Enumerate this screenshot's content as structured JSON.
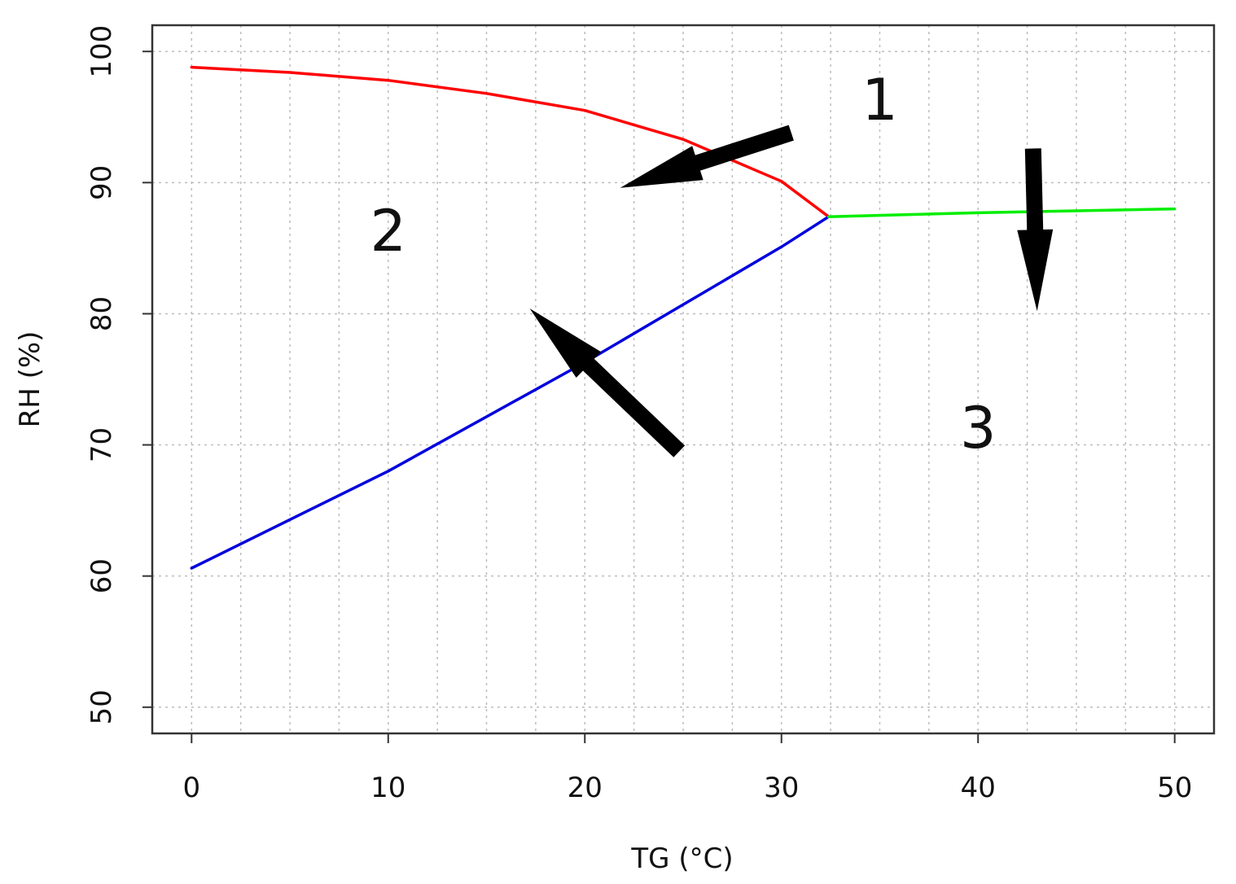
{
  "chart_data": {
    "type": "line",
    "title": "",
    "xlabel": "TG (°C)",
    "ylabel": "RH (%)",
    "xlim": [
      -2,
      52
    ],
    "ylim": [
      48,
      102
    ],
    "xticks": [
      0,
      10,
      20,
      30,
      40,
      50
    ],
    "yticks": [
      50,
      60,
      70,
      80,
      90,
      100
    ],
    "grid": true,
    "legend": "none",
    "series": [
      {
        "color": "#ff0000",
        "x": [
          0,
          5,
          10,
          15,
          20,
          25,
          30,
          32.4
        ],
        "y": [
          98.8,
          98.4,
          97.8,
          96.8,
          95.5,
          93.3,
          90.1,
          87.4
        ]
      },
      {
        "color": "#0000dd",
        "x": [
          0,
          10,
          20,
          30,
          32.4
        ],
        "y": [
          60.6,
          68.0,
          76.3,
          85.1,
          87.4
        ]
      },
      {
        "color": "#00ee00",
        "x": [
          32.4,
          40,
          50
        ],
        "y": [
          87.4,
          87.7,
          88.0
        ]
      }
    ],
    "annotations": [
      {
        "text": "1",
        "x": 35,
        "y": 94.8
      },
      {
        "text": "2",
        "x": 10,
        "y": 84.8
      },
      {
        "text": "3",
        "x": 40,
        "y": 69.8
      }
    ],
    "arrows": [
      {
        "from": [
          30.5,
          93.8
        ],
        "to": [
          21.8,
          89.6
        ]
      },
      {
        "from": [
          24.8,
          69.5
        ],
        "to": [
          17.2,
          80.4
        ]
      },
      {
        "from": [
          42.8,
          92.6
        ],
        "to": [
          43.0,
          80.2
        ]
      }
    ]
  }
}
